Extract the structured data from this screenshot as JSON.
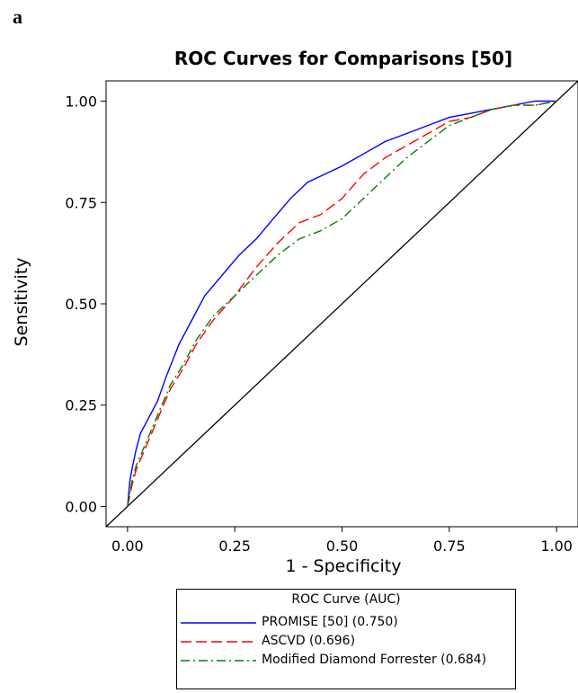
{
  "panel_label": "a",
  "chart_data": {
    "type": "line",
    "title": "ROC Curves for Comparisons [50]",
    "xlabel": "1 - Specificity",
    "ylabel": "Sensitivity",
    "xlim": [
      -0.05,
      1.05
    ],
    "ylim": [
      -0.05,
      1.05
    ],
    "xticks": [
      "0.00",
      "0.25",
      "0.50",
      "0.75",
      "1.00"
    ],
    "yticks": [
      "0.00",
      "0.25",
      "0.50",
      "0.75",
      "1.00"
    ],
    "grid": true,
    "legend_title": "ROC Curve (AUC)",
    "legend_position": "bottom",
    "series": [
      {
        "name": "PROMISE [50] (0.750)",
        "color": "#0000ff",
        "dash": "solid",
        "x": [
          0,
          0.005,
          0.01,
          0.02,
          0.03,
          0.05,
          0.07,
          0.09,
          0.12,
          0.15,
          0.18,
          0.22,
          0.26,
          0.3,
          0.34,
          0.38,
          0.42,
          0.46,
          0.5,
          0.55,
          0.6,
          0.65,
          0.7,
          0.75,
          0.8,
          0.85,
          0.9,
          0.95,
          1.0
        ],
        "y": [
          0,
          0.06,
          0.09,
          0.14,
          0.18,
          0.22,
          0.26,
          0.32,
          0.4,
          0.46,
          0.52,
          0.57,
          0.62,
          0.66,
          0.71,
          0.76,
          0.8,
          0.82,
          0.84,
          0.87,
          0.9,
          0.92,
          0.94,
          0.96,
          0.97,
          0.98,
          0.99,
          1.0,
          1.0
        ]
      },
      {
        "name": "ASCVD (0.696)",
        "color": "#ff0000",
        "dash": "long-dash",
        "x": [
          0,
          0.01,
          0.02,
          0.04,
          0.06,
          0.08,
          0.1,
          0.13,
          0.16,
          0.2,
          0.25,
          0.3,
          0.35,
          0.4,
          0.45,
          0.5,
          0.55,
          0.6,
          0.65,
          0.7,
          0.75,
          0.8,
          0.85,
          0.9,
          0.95,
          1.0
        ],
        "y": [
          0,
          0.05,
          0.09,
          0.14,
          0.19,
          0.24,
          0.29,
          0.34,
          0.4,
          0.46,
          0.52,
          0.59,
          0.65,
          0.7,
          0.72,
          0.76,
          0.82,
          0.86,
          0.89,
          0.92,
          0.95,
          0.96,
          0.98,
          0.99,
          0.99,
          1.0
        ]
      },
      {
        "name": "Modified Diamond Forrester (0.684)",
        "color": "#008000",
        "dash": "dash-dot",
        "x": [
          0,
          0.01,
          0.02,
          0.04,
          0.06,
          0.08,
          0.1,
          0.13,
          0.16,
          0.2,
          0.25,
          0.3,
          0.35,
          0.4,
          0.45,
          0.5,
          0.55,
          0.6,
          0.65,
          0.7,
          0.75,
          0.8,
          0.85,
          0.9,
          0.95,
          1.0
        ],
        "y": [
          0,
          0.06,
          0.1,
          0.15,
          0.2,
          0.25,
          0.3,
          0.35,
          0.41,
          0.47,
          0.52,
          0.57,
          0.62,
          0.66,
          0.68,
          0.71,
          0.76,
          0.81,
          0.86,
          0.9,
          0.94,
          0.96,
          0.98,
          0.99,
          0.99,
          1.0
        ]
      }
    ],
    "reference_line": {
      "x": [
        -0.05,
        1.05
      ],
      "y": [
        -0.05,
        1.05
      ],
      "color": "#000000"
    }
  }
}
